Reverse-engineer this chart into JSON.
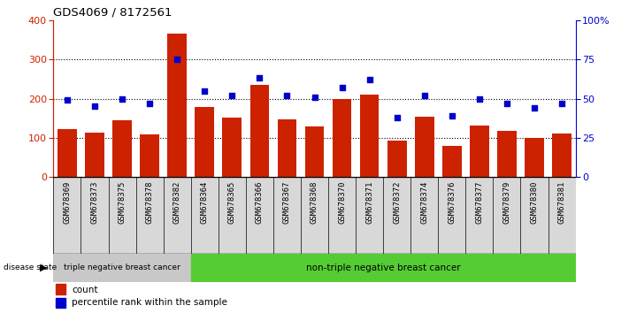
{
  "title": "GDS4069 / 8172561",
  "samples": [
    "GSM678369",
    "GSM678373",
    "GSM678375",
    "GSM678378",
    "GSM678382",
    "GSM678364",
    "GSM678365",
    "GSM678366",
    "GSM678367",
    "GSM678368",
    "GSM678370",
    "GSM678371",
    "GSM678372",
    "GSM678374",
    "GSM678376",
    "GSM678377",
    "GSM678379",
    "GSM678380",
    "GSM678381"
  ],
  "counts": [
    123,
    113,
    145,
    108,
    365,
    178,
    152,
    235,
    148,
    128,
    198,
    210,
    93,
    153,
    78,
    132,
    118,
    100,
    110
  ],
  "percentiles": [
    49,
    45,
    50,
    47,
    75,
    55,
    52,
    63,
    52,
    51,
    57,
    62,
    38,
    52,
    39,
    50,
    47,
    44,
    47
  ],
  "group1_label": "triple negative breast cancer",
  "group2_label": "non-triple negative breast cancer",
  "group1_count": 5,
  "bar_color": "#cc2200",
  "dot_color": "#0000cc",
  "left_axis_color": "#cc2200",
  "right_axis_color": "#0000cc",
  "ylim_left": [
    0,
    400
  ],
  "left_yticks": [
    0,
    100,
    200,
    300,
    400
  ],
  "right_yticks": [
    0,
    25,
    50,
    75,
    100
  ],
  "right_yticklabels": [
    "0",
    "25",
    "50",
    "75",
    "100%"
  ],
  "grid_values": [
    100,
    200,
    300
  ],
  "background_color": "#ffffff",
  "plot_bg": "#ffffff",
  "col_bg": "#d8d8d8",
  "group1_bg": "#c8c8c8",
  "group2_bg": "#55cc33",
  "legend_count_label": "count",
  "legend_pct_label": "percentile rank within the sample"
}
